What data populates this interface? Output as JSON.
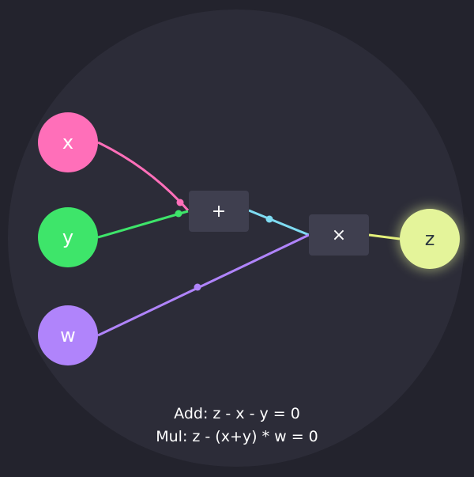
{
  "nodes": {
    "x": "x",
    "y": "y",
    "w": "w",
    "z": "z"
  },
  "operators": {
    "add": "+",
    "mul": "×"
  },
  "equations": {
    "add": "Add: z - x - y = 0",
    "mul": "Mul: z - (x+y) * w = 0"
  },
  "colors": {
    "background": "#23232d",
    "disc": "#2c2c38",
    "operator_box": "#3f3f4f",
    "x": "#ff6fb9",
    "y": "#3ee56a",
    "w": "#b084fb",
    "z": "#e4f49a",
    "sum_wire": "#7fdcf2",
    "output_wire": "#e4f07a"
  }
}
